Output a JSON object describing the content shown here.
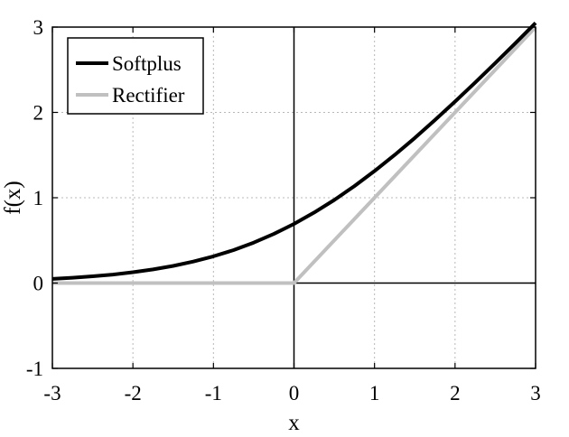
{
  "chart_data": {
    "type": "line",
    "title": "",
    "xlabel": "x",
    "ylabel": "f(x)",
    "xlim": [
      -3,
      3
    ],
    "ylim": [
      -1,
      3
    ],
    "xticks": [
      "-3",
      "-2",
      "-1",
      "0",
      "1",
      "2",
      "3"
    ],
    "yticks": [
      "-1",
      "0",
      "1",
      "2",
      "3"
    ],
    "grid": true,
    "legend_position": "top-left",
    "series": [
      {
        "name": "Softplus",
        "color": "#000000",
        "x": [
          -3,
          -2.75,
          -2.5,
          -2.25,
          -2,
          -1.75,
          -1.5,
          -1.25,
          -1,
          -0.75,
          -0.5,
          -0.25,
          0,
          0.25,
          0.5,
          0.75,
          1,
          1.25,
          1.5,
          1.75,
          2,
          2.25,
          2.5,
          2.75,
          3
        ],
        "y": [
          0.049,
          0.062,
          0.079,
          0.1,
          0.127,
          0.16,
          0.201,
          0.252,
          0.313,
          0.386,
          0.474,
          0.576,
          0.693,
          0.826,
          0.974,
          1.136,
          1.313,
          1.502,
          1.701,
          1.91,
          2.127,
          2.35,
          2.579,
          2.812,
          3.049
        ]
      },
      {
        "name": "Rectifier",
        "color": "#c0c0c0",
        "x": [
          -3,
          0,
          3
        ],
        "y": [
          0,
          0,
          3
        ]
      }
    ]
  }
}
